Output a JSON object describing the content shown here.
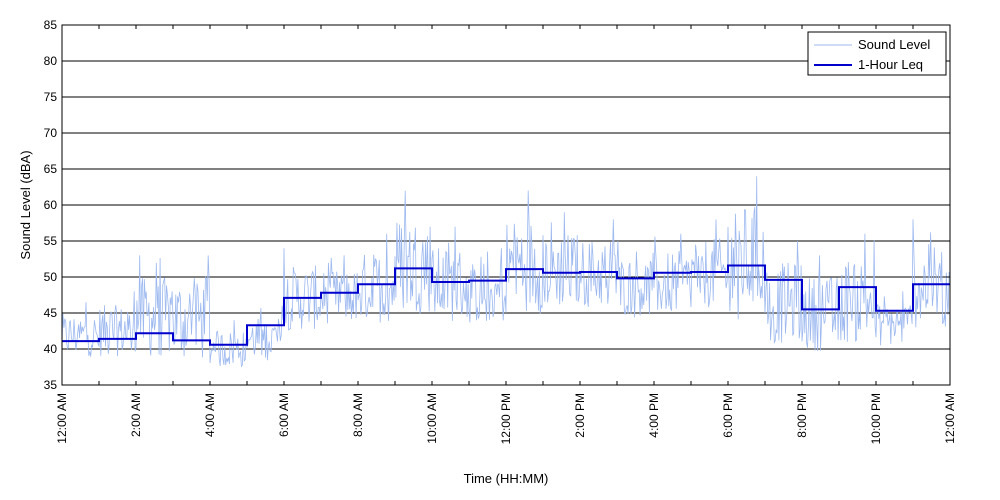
{
  "chart_data": {
    "type": "line",
    "title": "",
    "xlabel": "Time (HH:MM)",
    "ylabel": "Sound Level (dBA)",
    "ylim": [
      35,
      85
    ],
    "xlim_hours": [
      0,
      24
    ],
    "y_ticks": [
      35,
      40,
      45,
      50,
      55,
      60,
      65,
      70,
      75,
      80,
      85
    ],
    "x_tick_labels": [
      "12:00 AM",
      "2:00 AM",
      "4:00 AM",
      "6:00 AM",
      "8:00 AM",
      "10:00 AM",
      "12:00 PM",
      "2:00 PM",
      "4:00 PM",
      "6:00 PM",
      "8:00 PM",
      "10:00 PM",
      "12:00 AM"
    ],
    "x_tick_hours": [
      0,
      2,
      4,
      6,
      8,
      10,
      12,
      14,
      16,
      18,
      20,
      22,
      24
    ],
    "grid": "horizontal",
    "legend_position": "top-right",
    "series": [
      {
        "name": "Sound Level",
        "color": "#9db9f0",
        "style": "thin-line",
        "note_values": "approximate hourly envelope (min, max) of the fluctuating trace",
        "hourly_range": [
          [
            38.5,
            46.5
          ],
          [
            38.5,
            48
          ],
          [
            38,
            53
          ],
          [
            37.5,
            53
          ],
          [
            37,
            44
          ],
          [
            38,
            46
          ],
          [
            42,
            54
          ],
          [
            43,
            53
          ],
          [
            43,
            56
          ],
          [
            44,
            62
          ],
          [
            43,
            57
          ],
          [
            43,
            54
          ],
          [
            44,
            62
          ],
          [
            45,
            59
          ],
          [
            45,
            58
          ],
          [
            44,
            55
          ],
          [
            44,
            56
          ],
          [
            45,
            58
          ],
          [
            44,
            64
          ],
          [
            40,
            55
          ],
          [
            39,
            53
          ],
          [
            40,
            56
          ],
          [
            40,
            48
          ],
          [
            42,
            58
          ]
        ]
      },
      {
        "name": "1-Hour Leq",
        "color": "#0000cc",
        "style": "step",
        "hours": [
          0,
          1,
          2,
          3,
          4,
          5,
          6,
          7,
          8,
          9,
          10,
          11,
          12,
          13,
          14,
          15,
          16,
          17,
          18,
          19,
          20,
          21,
          22,
          23
        ],
        "values": [
          41.1,
          41.4,
          42.2,
          41.2,
          40.6,
          43.3,
          47.1,
          47.8,
          49.0,
          51.2,
          49.3,
          49.5,
          51.1,
          50.6,
          50.7,
          49.8,
          50.6,
          50.7,
          51.6,
          49.6,
          45.5,
          48.6,
          45.3,
          49.0
        ]
      }
    ]
  },
  "colors": {
    "grid": "#000000",
    "axis": "#000000",
    "background": "#ffffff"
  }
}
